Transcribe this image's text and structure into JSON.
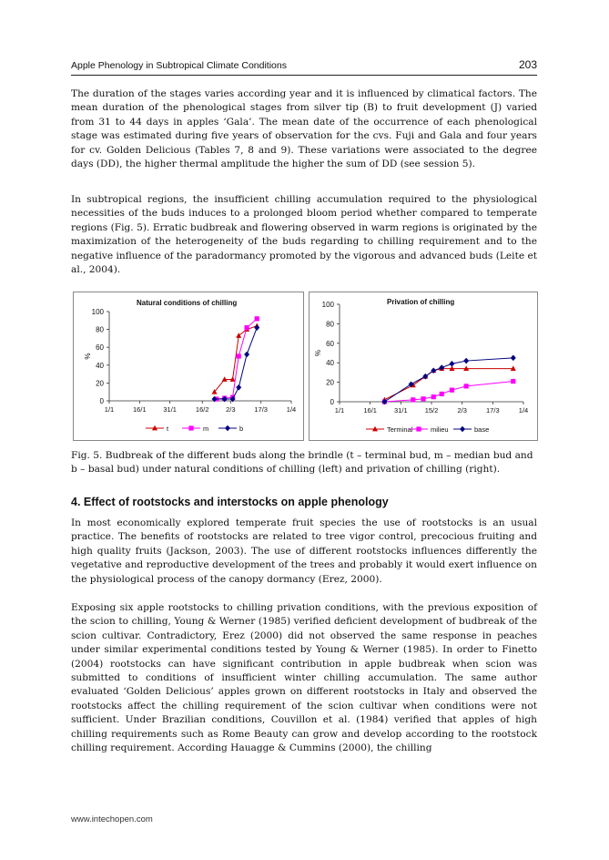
{
  "header": {
    "running_title": "Apple Phenology in Subtropical Climate Conditions",
    "page_number": "203"
  },
  "paragraphs": {
    "p1": "The duration of the stages varies according year and it is influenced by climatical factors. The mean duration of the phenological stages from silver tip (B) to fruit development (J) varied from 31 to 44 days in apples ‘Gala’. The mean date of the occurrence of each phenological stage was estimated during five years of observation for the cvs. Fuji and Gala and four years for cv. Golden Delicious (Tables 7, 8 and 9). These variations were associated to the degree days (DD), the higher thermal amplitude the higher the sum of DD (see session 5).",
    "p2": "In subtropical regions, the insufficient chilling accumulation required to the physiological necessities of the buds induces to a prolonged bloom period whether compared to temperate regions (Fig. 5). Erratic budbreak and flowering observed in warm regions is originated by the maximization of the heterogeneity of the buds regarding to chilling requirement and to the negative influence of the paradormancy promoted by the vigorous and advanced buds (Leite et al., 2004).",
    "p3": "In most economically explored temperate fruit species the use of rootstocks is an usual practice. The benefits of rootstocks are related to tree vigor control, precocious fruiting and high quality fruits (Jackson, 2003). The use of different rootstocks influences differently the vegetative and reproductive development of the trees and probably it would exert influence on the physiological process of the canopy dormancy (Erez, 2000).",
    "p4": "Exposing six apple rootstocks to chilling privation conditions, with the previous exposition of the scion to chilling, Young & Werner (1985) verified deficient development of budbreak of the scion cultivar. Contradictory, Erez (2000) did not observed the same response in peaches under similar experimental conditions tested by Young & Werner (1985). In order to Finetto (2004) rootstocks can have significant contribution in apple budbreak when scion was submitted to conditions of insufficient winter chilling accumulation. The same author evaluated ‘Golden Delicious’ apples grown on different rootstocks in Italy and observed the rootstocks affect the chilling requirement of the scion cultivar when conditions were not sufficient. Under Brazilian conditions, Couvillon et al. (1984) verified that apples of high chilling requirements such as Rome Beauty can grow and develop according to the rootstock chilling requirement. According Hauagge & Cummins (2000), the chilling"
  },
  "figure": {
    "caption": "Fig. 5. Budbreak of the different buds along the brindle (t – terminal bud, m – median bud and b – basal bud) under natural conditions of chilling (left) and privation of chilling (right)."
  },
  "section": {
    "heading": "4. Effect of rootstocks and interstocks on apple phenology"
  },
  "footer": {
    "url": "www.intechopen.com"
  },
  "chart_data": [
    {
      "type": "line",
      "title": "Natural conditions of chilling",
      "ylabel": "%",
      "xlabel": "",
      "x_ticks": [
        "1/1",
        "16/1",
        "31/1",
        "16/2",
        "2/3",
        "17/3",
        "1/4"
      ],
      "x_ticks_days": [
        0,
        15,
        30,
        46,
        60,
        75,
        90
      ],
      "y_ticks": [
        0,
        20,
        40,
        60,
        80,
        100
      ],
      "ylim": [
        0,
        100
      ],
      "legend_position": "bottom",
      "grid": false,
      "series": [
        {
          "name": "t",
          "color": "#cc0000",
          "marker": "triangle",
          "x_days": [
            52,
            57,
            61,
            64,
            68,
            73
          ],
          "y": [
            10,
            24,
            24,
            73,
            80,
            84
          ]
        },
        {
          "name": "m",
          "color": "#ff00ff",
          "marker": "square",
          "x_days": [
            53,
            57,
            61,
            64,
            68,
            73
          ],
          "y": [
            2,
            3,
            4,
            50,
            82,
            92
          ]
        },
        {
          "name": "b",
          "color": "#000080",
          "marker": "diamond",
          "x_days": [
            52,
            57,
            61,
            64,
            68,
            73
          ],
          "y": [
            2,
            2,
            2,
            15,
            52,
            82
          ]
        }
      ]
    },
    {
      "type": "line",
      "title": "Privation of chilling",
      "ylabel": "%",
      "xlabel": "",
      "x_ticks": [
        "1/1",
        "16/1",
        "31/1",
        "15/2",
        "2/3",
        "17/3",
        "1/4"
      ],
      "x_ticks_days": [
        0,
        15,
        30,
        45,
        60,
        75,
        90
      ],
      "y_ticks": [
        0,
        20,
        40,
        60,
        80,
        100
      ],
      "ylim": [
        0,
        100
      ],
      "legend_position": "bottom",
      "grid": false,
      "series": [
        {
          "name": "Terminal",
          "color": "#cc0000",
          "marker": "triangle",
          "x_days": [
            22,
            36,
            42,
            46,
            50,
            55,
            62,
            85
          ],
          "y": [
            2,
            17,
            26,
            32,
            34,
            34,
            34,
            34
          ]
        },
        {
          "name": "milieu",
          "color": "#ff00ff",
          "marker": "square",
          "x_days": [
            22,
            36,
            41,
            46,
            50,
            55,
            62,
            85
          ],
          "y": [
            0,
            2,
            3,
            5,
            8,
            12,
            16,
            21
          ]
        },
        {
          "name": "base",
          "color": "#000080",
          "marker": "diamond",
          "x_days": [
            22,
            35,
            42,
            46,
            50,
            55,
            62,
            85
          ],
          "y": [
            0,
            18,
            26,
            32,
            35,
            39,
            42,
            45
          ]
        }
      ]
    }
  ]
}
